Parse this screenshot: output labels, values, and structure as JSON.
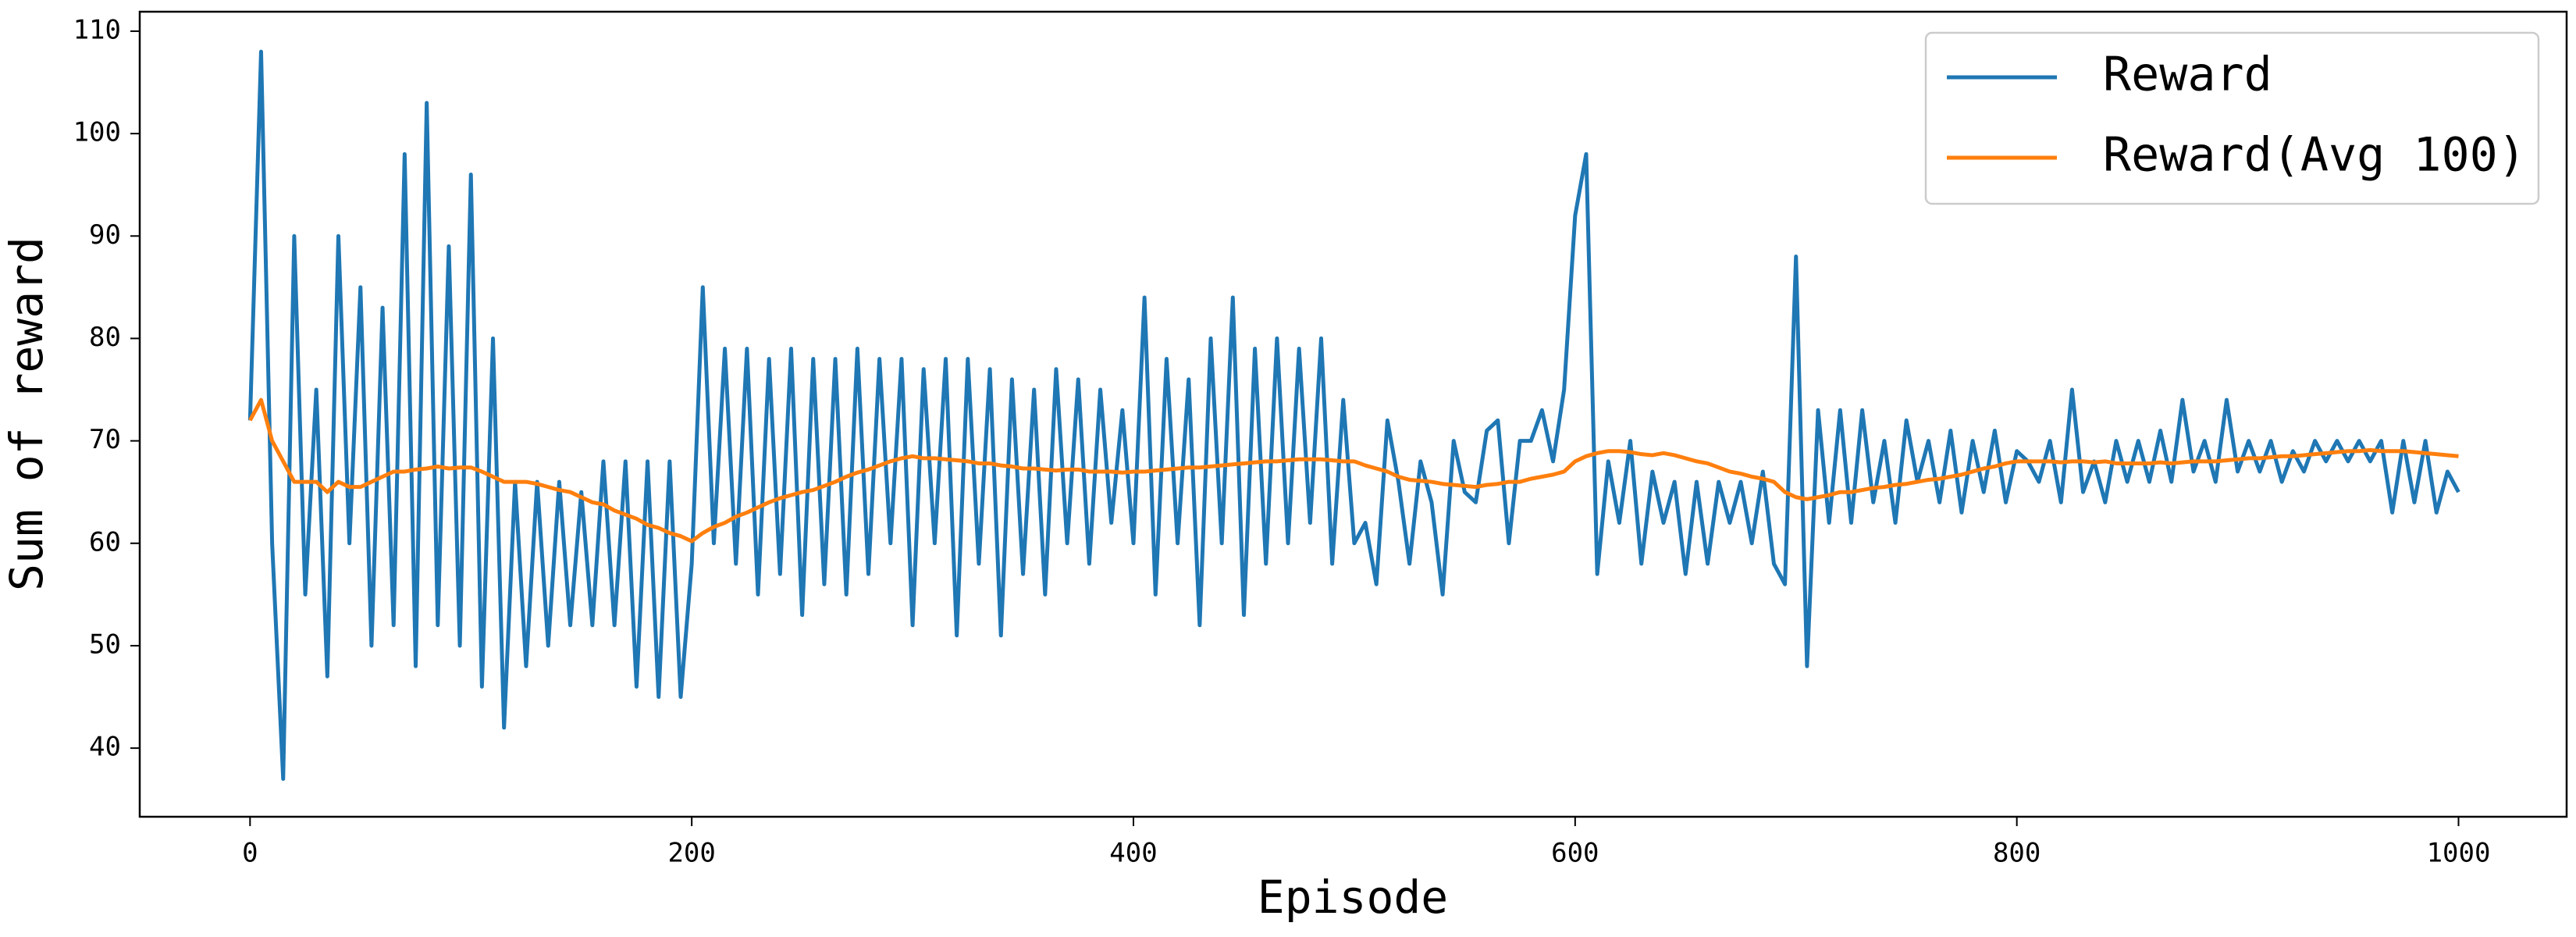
{
  "chart_data": {
    "type": "line",
    "xlabel": "Episode",
    "ylabel": "Sum of reward",
    "x": [
      0,
      5,
      10,
      15,
      20,
      25,
      30,
      35,
      40,
      45,
      50,
      55,
      60,
      65,
      70,
      75,
      80,
      85,
      90,
      95,
      100,
      105,
      110,
      115,
      120,
      125,
      130,
      135,
      140,
      145,
      150,
      155,
      160,
      165,
      170,
      175,
      180,
      185,
      190,
      195,
      200,
      205,
      210,
      215,
      220,
      225,
      230,
      235,
      240,
      245,
      250,
      255,
      260,
      265,
      270,
      275,
      280,
      285,
      290,
      295,
      300,
      305,
      310,
      315,
      320,
      325,
      330,
      335,
      340,
      345,
      350,
      355,
      360,
      365,
      370,
      375,
      380,
      385,
      390,
      395,
      400,
      405,
      410,
      415,
      420,
      425,
      430,
      435,
      440,
      445,
      450,
      455,
      460,
      465,
      470,
      475,
      480,
      485,
      490,
      495,
      500,
      505,
      510,
      515,
      520,
      525,
      530,
      535,
      540,
      545,
      550,
      555,
      560,
      565,
      570,
      575,
      580,
      585,
      590,
      595,
      600,
      605,
      610,
      615,
      620,
      625,
      630,
      635,
      640,
      645,
      650,
      655,
      660,
      665,
      670,
      675,
      680,
      685,
      690,
      695,
      700,
      705,
      710,
      715,
      720,
      725,
      730,
      735,
      740,
      745,
      750,
      755,
      760,
      765,
      770,
      775,
      780,
      785,
      790,
      795,
      800,
      805,
      810,
      815,
      820,
      825,
      830,
      835,
      840,
      845,
      850,
      855,
      860,
      865,
      870,
      875,
      880,
      885,
      890,
      895,
      900,
      905,
      910,
      915,
      920,
      925,
      930,
      935,
      940,
      945,
      950,
      955,
      960,
      965,
      970,
      975,
      980,
      985,
      990,
      995,
      1000
    ],
    "series": [
      {
        "name": "Reward",
        "color": "#1f77b4",
        "values": [
          72,
          108,
          60,
          37,
          90,
          55,
          75,
          47,
          90,
          60,
          85,
          50,
          83,
          52,
          98,
          48,
          103,
          52,
          89,
          50,
          96,
          46,
          80,
          42,
          66,
          48,
          66,
          50,
          66,
          52,
          65,
          52,
          68,
          52,
          68,
          46,
          68,
          45,
          68,
          45,
          58,
          85,
          60,
          79,
          58,
          79,
          55,
          78,
          57,
          79,
          53,
          78,
          56,
          78,
          55,
          79,
          57,
          78,
          60,
          78,
          52,
          77,
          60,
          78,
          51,
          78,
          58,
          77,
          51,
          76,
          57,
          75,
          55,
          77,
          60,
          76,
          58,
          75,
          62,
          73,
          60,
          84,
          55,
          78,
          60,
          76,
          52,
          80,
          60,
          84,
          53,
          79,
          58,
          80,
          60,
          79,
          62,
          80,
          58,
          74,
          60,
          62,
          56,
          72,
          66,
          58,
          68,
          64,
          55,
          70,
          65,
          64,
          71,
          72,
          60,
          70,
          70,
          73,
          68,
          75,
          92,
          98,
          57,
          68,
          62,
          70,
          58,
          67,
          62,
          66,
          57,
          66,
          58,
          66,
          62,
          66,
          60,
          67,
          58,
          56,
          88,
          48,
          73,
          62,
          73,
          62,
          73,
          64,
          70,
          62,
          72,
          66,
          70,
          64,
          71,
          63,
          70,
          65,
          71,
          64,
          69,
          68,
          66,
          70,
          64,
          75,
          65,
          68,
          64,
          70,
          66,
          70,
          66,
          71,
          66,
          74,
          67,
          70,
          66,
          74,
          67,
          70,
          67,
          70,
          66,
          69,
          67,
          70,
          68,
          70,
          68,
          70,
          68,
          70,
          63,
          70,
          64,
          70,
          63,
          67,
          65
        ]
      },
      {
        "name": "Reward(Avg 100)",
        "color": "#ff7f0e",
        "values": [
          72,
          74,
          70,
          68,
          66,
          66,
          66,
          65,
          66,
          65.5,
          65.5,
          66,
          66.5,
          67,
          67,
          67.2,
          67.3,
          67.5,
          67.3,
          67.4,
          67.4,
          67,
          66.5,
          66,
          66,
          66,
          65.8,
          65.5,
          65.2,
          65,
          64.5,
          64,
          63.8,
          63.2,
          62.8,
          62.4,
          61.8,
          61.5,
          61,
          60.7,
          60.2,
          61,
          61.6,
          62,
          62.6,
          63,
          63.5,
          64,
          64.4,
          64.7,
          65,
          65.2,
          65.6,
          66,
          66.5,
          66.9,
          67.2,
          67.6,
          68,
          68.3,
          68.5,
          68.3,
          68.3,
          68.2,
          68.1,
          68,
          67.8,
          67.8,
          67.6,
          67.5,
          67.3,
          67.3,
          67.2,
          67.1,
          67.2,
          67.2,
          67,
          67,
          67,
          66.9,
          67,
          67,
          67.1,
          67.2,
          67.3,
          67.4,
          67.4,
          67.5,
          67.6,
          67.7,
          67.8,
          67.9,
          68,
          68,
          68.1,
          68.2,
          68.2,
          68.2,
          68.1,
          68,
          68,
          67.6,
          67.3,
          67,
          66.5,
          66.2,
          66.1,
          66,
          65.8,
          65.7,
          65.6,
          65.5,
          65.7,
          65.8,
          66,
          66,
          66.3,
          66.5,
          66.7,
          67,
          68,
          68.5,
          68.8,
          69,
          69,
          68.9,
          68.7,
          68.6,
          68.8,
          68.6,
          68.3,
          68,
          67.8,
          67.4,
          67,
          66.8,
          66.5,
          66.3,
          66,
          65,
          64.5,
          64.3,
          64.5,
          64.7,
          65,
          65,
          65.2,
          65.4,
          65.5,
          65.7,
          65.8,
          66,
          66.2,
          66.3,
          66.5,
          66.7,
          67,
          67.3,
          67.5,
          67.8,
          68,
          68,
          68,
          68,
          67.9,
          68,
          68,
          67.9,
          68,
          67.8,
          67.8,
          67.8,
          67.8,
          67.9,
          67.8,
          67.9,
          68,
          68,
          68,
          68.1,
          68.2,
          68.3,
          68.3,
          68.4,
          68.5,
          68.5,
          68.6,
          68.7,
          68.8,
          68.9,
          69,
          69,
          69.1,
          69,
          69,
          69,
          68.9,
          68.8,
          68.7,
          68.6,
          68.5
        ]
      }
    ],
    "xlim": [
      -49.95,
      1048.95
    ],
    "ylim": [
      33.3,
      111.9
    ],
    "xticks": [
      0,
      200,
      400,
      600,
      800,
      1000
    ],
    "yticks": [
      40,
      50,
      60,
      70,
      80,
      90,
      100,
      110
    ],
    "legend": "upper right",
    "grid": false
  }
}
